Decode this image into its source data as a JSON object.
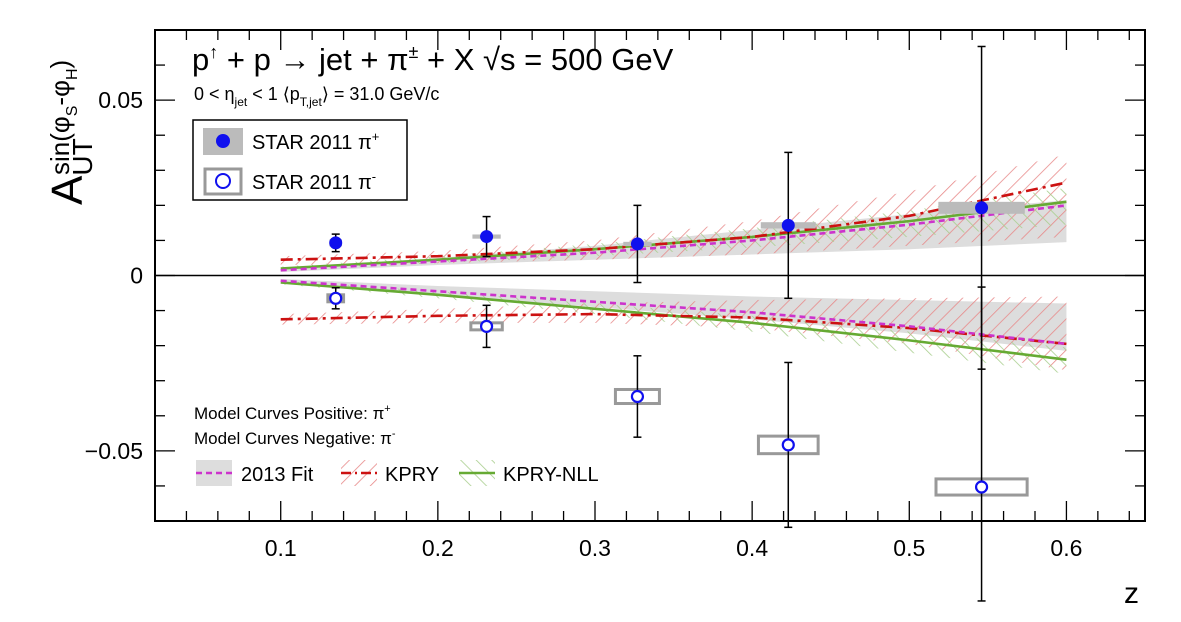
{
  "chart_data": {
    "type": "scatter",
    "xlabel": "z",
    "ylabel": {
      "main": "A",
      "sub": "UT",
      "sup": "sin(φ",
      "sup_s": "S",
      "sup_mid": "-φ",
      "sup_h": "H",
      "sup_end": ")"
    },
    "xlim": [
      0.02,
      0.65
    ],
    "ylim": [
      -0.07,
      0.07
    ],
    "x_ticks": [
      0.1,
      0.2,
      0.3,
      0.4,
      0.5,
      0.6
    ],
    "x_tick_labels": [
      "0.1",
      "0.2",
      "0.3",
      "0.4",
      "0.5",
      "0.6"
    ],
    "y_ticks": [
      -0.05,
      0,
      0.05
    ],
    "y_tick_labels": [
      "−0.05",
      "0",
      "0.05"
    ],
    "grid": false,
    "title_line1": {
      "p": "p",
      "arrow": "↑",
      "rest": " + p → jet + π",
      "pm": "±",
      "x": " + X  ",
      "sqrt": "√",
      "s": "s = 500 GeV"
    },
    "title_line2": {
      "a": "0 < η",
      "eta_sub": "jet",
      "b": " < 1   ⟨p",
      "pt_sub": "T,jet",
      "c": "⟩ = 31.0 GeV/c"
    },
    "legend": [
      {
        "label": "STAR 2011 π",
        "sup": "+",
        "marker": "filled-circle"
      },
      {
        "label": "STAR 2011 π",
        "sup": "-",
        "marker": "open-circle"
      }
    ],
    "model_notes": [
      {
        "text": "Model Curves Positive: π",
        "sup": "+"
      },
      {
        "text": "Model Curves Negative: π",
        "sup": "-"
      }
    ],
    "model_legend": [
      {
        "label": "2013 Fit",
        "style": "dashed",
        "color": "#cc33cc",
        "band": "#dddddd"
      },
      {
        "label": "KPRY",
        "style": "dash-dot",
        "color": "#cc1111",
        "band": "hatched-red"
      },
      {
        "label": "KPRY-NLL",
        "style": "solid",
        "color": "#66aa33",
        "band": "hatched-green"
      }
    ],
    "colors": {
      "data_marker": "#1010ee",
      "syst_box_pos": "#bbbbbb",
      "syst_box_neg": "#999999",
      "fit_band": "#dddddd",
      "kpry": "#cc1111",
      "nll": "#66aa33",
      "fit_line": "#cc33cc"
    },
    "series": [
      {
        "name": "STAR 2011 π+",
        "x": [
          0.135,
          0.231,
          0.327,
          0.423,
          0.546
        ],
        "y": [
          0.0093,
          0.0111,
          0.009,
          0.0143,
          0.0193
        ],
        "err_lo": [
          0.0025,
          0.0057,
          0.011,
          0.0208,
          0.046
        ],
        "err_hi": [
          0.0025,
          0.0057,
          0.011,
          0.0208,
          0.046
        ],
        "sys_width": [
          0.008,
          0.018,
          0.018,
          0.035,
          0.055
        ],
        "sys_half": [
          0.001,
          0.0006,
          0.0006,
          0.0009,
          0.0017
        ]
      },
      {
        "name": "STAR 2011 π-",
        "x": [
          0.135,
          0.231,
          0.327,
          0.423,
          0.546
        ],
        "y": [
          -0.0065,
          -0.0145,
          -0.0345,
          -0.0483,
          -0.0603
        ],
        "err_lo": [
          0.003,
          0.006,
          0.0116,
          0.0235,
          0.0325
        ],
        "err_hi": [
          0.003,
          0.006,
          0.0116,
          0.0235,
          0.057
        ],
        "sys_width": [
          0.01,
          0.02,
          0.028,
          0.038,
          0.058
        ],
        "sys_half": [
          0.001,
          0.001,
          0.002,
          0.0025,
          0.0023
        ]
      }
    ],
    "model_curves": {
      "x": [
        0.1,
        0.2,
        0.3,
        0.4,
        0.5,
        0.6
      ],
      "fit_pos": [
        0.0015,
        0.004,
        0.0065,
        0.01,
        0.0145,
        0.02
      ],
      "fit_pos_band_lo": [
        0.001,
        0.003,
        0.0045,
        0.006,
        0.0075,
        0.0095
      ],
      "fit_pos_band_hi": [
        0.002,
        0.005,
        0.0085,
        0.013,
        0.0175,
        0.0215
      ],
      "kpry_pos": [
        0.0045,
        0.0055,
        0.0075,
        0.011,
        0.017,
        0.0265
      ],
      "kpry_pos_band_lo": [
        0.003,
        0.0035,
        0.0045,
        0.006,
        0.0085,
        0.011
      ],
      "kpry_pos_band_hi": [
        0.0055,
        0.007,
        0.01,
        0.0155,
        0.024,
        0.0345
      ],
      "nll_pos": [
        0.002,
        0.0045,
        0.0075,
        0.011,
        0.0155,
        0.021
      ],
      "nll_pos_band_lo": [
        0.0015,
        0.0035,
        0.0055,
        0.008,
        0.011,
        0.0145
      ],
      "nll_pos_band_hi": [
        0.0025,
        0.0055,
        0.009,
        0.0135,
        0.0185,
        0.025
      ],
      "fit_neg": [
        -0.0015,
        -0.0045,
        -0.0075,
        -0.0105,
        -0.0145,
        -0.0195
      ],
      "fit_neg_band_lo": [
        -0.002,
        -0.0055,
        -0.009,
        -0.0125,
        -0.0165,
        -0.0215
      ],
      "fit_neg_band_hi": [
        -0.001,
        -0.003,
        -0.0045,
        -0.006,
        -0.007,
        -0.008
      ],
      "kpry_neg": [
        -0.0125,
        -0.0115,
        -0.011,
        -0.012,
        -0.015,
        -0.0195
      ],
      "kpry_neg_band_lo": [
        -0.014,
        -0.0135,
        -0.0135,
        -0.015,
        -0.0195,
        -0.027
      ],
      "kpry_neg_band_hi": [
        -0.011,
        -0.0095,
        -0.008,
        -0.007,
        -0.0065,
        -0.006
      ],
      "nll_neg": [
        -0.002,
        -0.0055,
        -0.0095,
        -0.0135,
        -0.0185,
        -0.024
      ],
      "nll_neg_band_lo": [
        -0.0025,
        -0.0065,
        -0.011,
        -0.016,
        -0.022,
        -0.028
      ],
      "nll_neg_band_hi": [
        -0.0015,
        -0.0045,
        -0.008,
        -0.0115,
        -0.016,
        -0.0205
      ]
    }
  }
}
